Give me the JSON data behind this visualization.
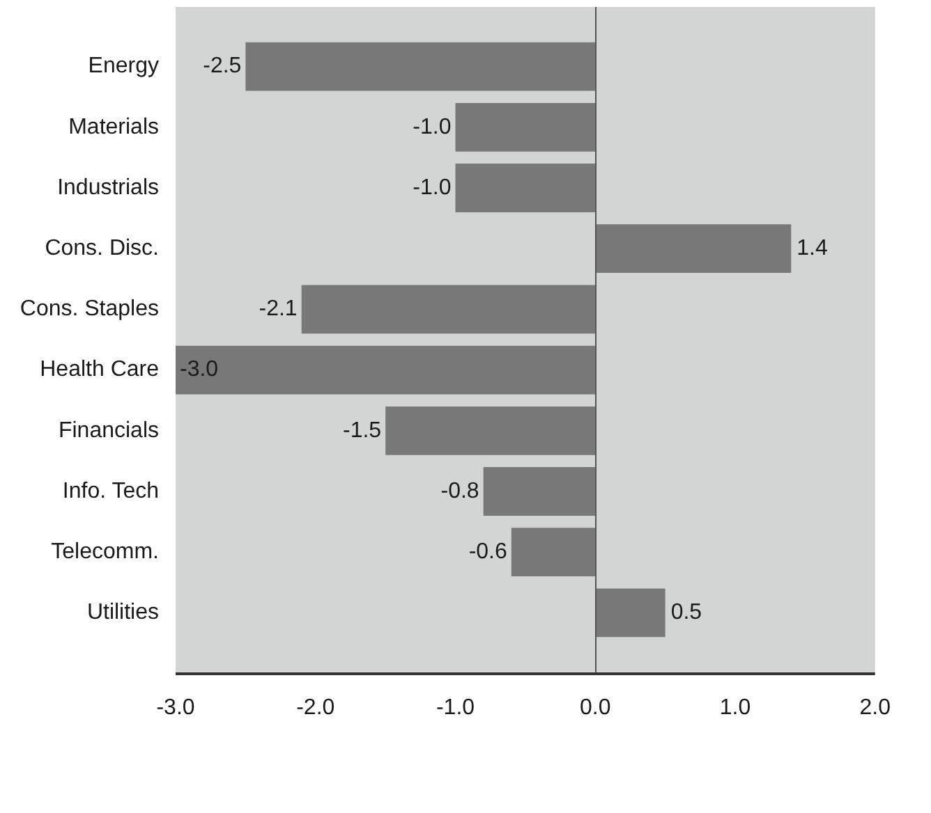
{
  "chart_data": {
    "type": "bar",
    "orientation": "horizontal",
    "categories": [
      "Energy",
      "Materials",
      "Industrials",
      "Cons. Disc.",
      "Cons. Staples",
      "Health Care",
      "Financials",
      "Info. Tech",
      "Telecomm.",
      "Utilities"
    ],
    "values": [
      -2.5,
      -1.0,
      -1.0,
      1.4,
      -2.1,
      -3.0,
      -1.5,
      -0.8,
      -0.6,
      0.5
    ],
    "value_labels": [
      "-2.5",
      "-1.0",
      "-1.0",
      "1.4",
      "-2.1",
      "-3.0",
      "-1.5",
      "-0.8",
      "-0.6",
      "0.5"
    ],
    "color": "#787878",
    "xlim": [
      -3,
      2
    ],
    "xticks": [
      {
        "value": -3,
        "label": "-3.0"
      },
      {
        "value": -2,
        "label": "-2.0"
      },
      {
        "value": -1,
        "label": "-1.0"
      },
      {
        "value": 0,
        "label": "0.0"
      },
      {
        "value": 1,
        "label": "1.0"
      },
      {
        "value": 2,
        "label": "2.0"
      }
    ]
  }
}
